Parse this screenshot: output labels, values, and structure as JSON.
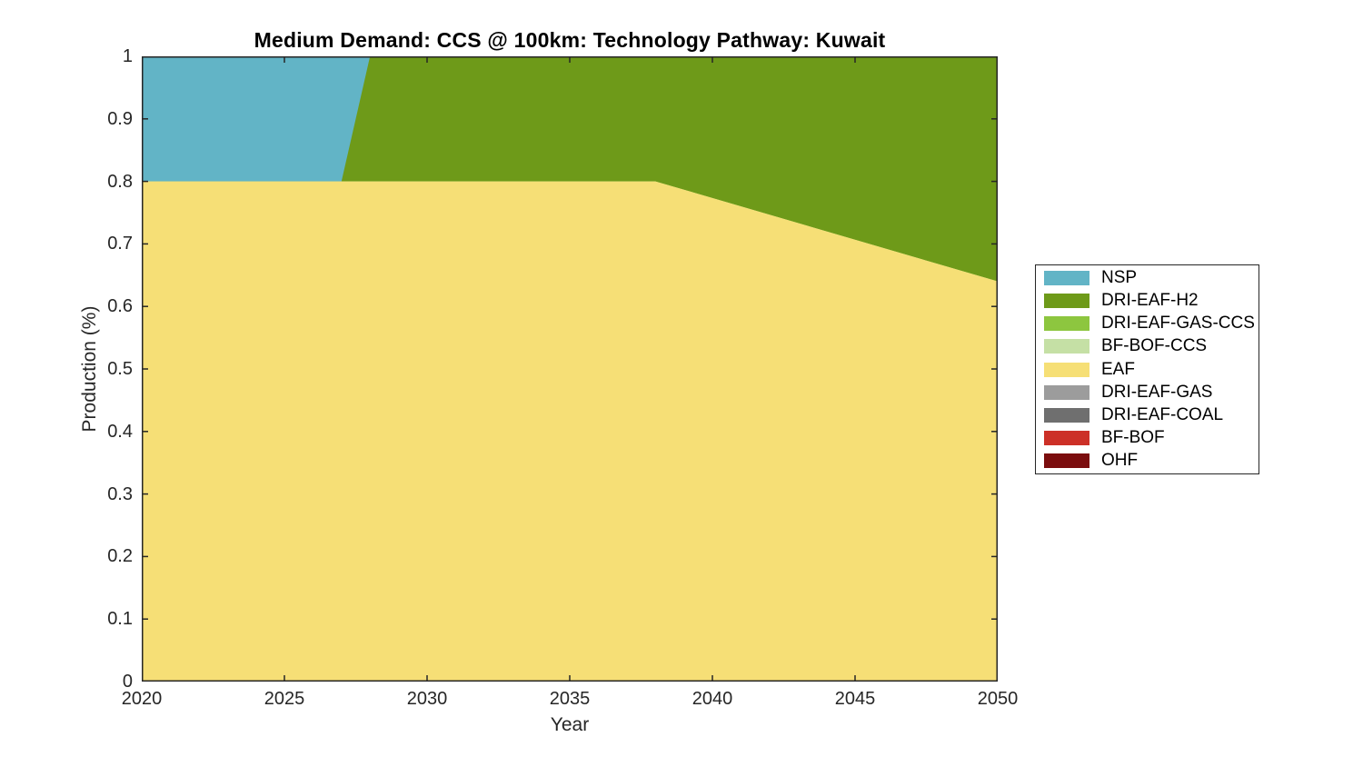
{
  "figure": {
    "background": "#ffffff",
    "axis_color": "#262626"
  },
  "chart_data": {
    "type": "area",
    "stacked": true,
    "title": "Medium Demand: CCS @ 100km: Technology Pathway: Kuwait",
    "xlabel": "Year",
    "ylabel": "Production (%)",
    "xlim": [
      2020,
      2050
    ],
    "ylim": [
      0,
      1
    ],
    "xticks": [
      2020,
      2025,
      2030,
      2035,
      2040,
      2045,
      2050
    ],
    "yticks": [
      0,
      0.1,
      0.2,
      0.3,
      0.4,
      0.5,
      0.6,
      0.7,
      0.8,
      0.9,
      1
    ],
    "grid": false,
    "legend_position": "right-outside",
    "stack_direction": "last-listed-series-at-bottom",
    "x": [
      2020,
      2027,
      2028,
      2038,
      2050
    ],
    "series": [
      {
        "name": "NSP",
        "color": "#62B4C6",
        "values": [
          0.2,
          0.2,
          0,
          0,
          0
        ]
      },
      {
        "name": "DRI-EAF-H2",
        "color": "#6E9A19",
        "values": [
          0,
          0,
          0.2,
          0.2,
          0.36
        ]
      },
      {
        "name": "DRI-EAF-GAS-CCS",
        "color": "#8DC63F",
        "values": [
          0,
          0,
          0,
          0,
          0
        ]
      },
      {
        "name": "BF-BOF-CCS",
        "color": "#C5E0A5",
        "values": [
          0,
          0,
          0,
          0,
          0
        ]
      },
      {
        "name": "EAF",
        "color": "#F6DF76",
        "values": [
          0.8,
          0.8,
          0.8,
          0.8,
          0.64
        ]
      },
      {
        "name": "DRI-EAF-GAS",
        "color": "#9C9C9C",
        "values": [
          0,
          0,
          0,
          0,
          0
        ]
      },
      {
        "name": "DRI-EAF-COAL",
        "color": "#6F6F6F",
        "values": [
          0,
          0,
          0,
          0,
          0
        ]
      },
      {
        "name": "BF-BOF",
        "color": "#CC3027",
        "values": [
          0,
          0,
          0,
          0,
          0
        ]
      },
      {
        "name": "OHF",
        "color": "#7B0D0E",
        "values": [
          0,
          0,
          0,
          0,
          0
        ]
      }
    ]
  }
}
